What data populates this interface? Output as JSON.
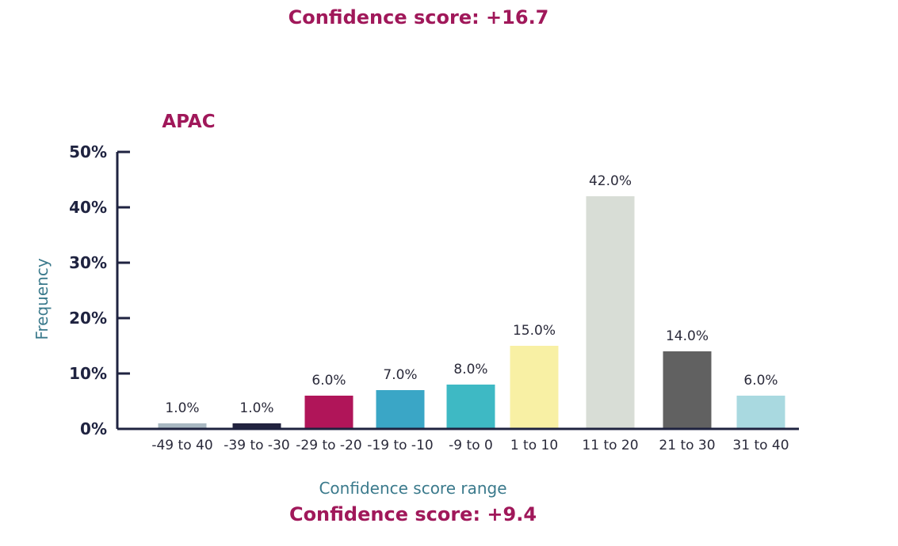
{
  "top_heading": "Confidence score: +16.7",
  "bottom_heading": "Confidence score: +9.4",
  "chart_data": {
    "type": "bar",
    "title": "APAC",
    "xlabel": "Confidence score range",
    "ylabel": "Frequency",
    "ylim": [
      0,
      50
    ],
    "y_ticks": [
      "0%",
      "10%",
      "20%",
      "30%",
      "40%",
      "50%"
    ],
    "grid": false,
    "categories": [
      "-49 to 40",
      "-39 to -30",
      "-29 to -20",
      "-19 to -10",
      "-9 to 0",
      "1 to 10",
      "11 to 20",
      "21 to 30",
      "31 to 40"
    ],
    "values": [
      1.0,
      1.0,
      6.0,
      7.0,
      8.0,
      15.0,
      42.0,
      14.0,
      6.0
    ],
    "data_labels": [
      "1.0%",
      "1.0%",
      "6.0%",
      "7.0%",
      "8.0%",
      "15.0%",
      "42.0%",
      "14.0%",
      "6.0%"
    ],
    "colors": [
      "#a9b8c2",
      "#22233f",
      "#b01559",
      "#3aa6c6",
      "#3eb9c4",
      "#f8f0a4",
      "#d8ddd6",
      "#616161",
      "#a9d9e0"
    ]
  }
}
